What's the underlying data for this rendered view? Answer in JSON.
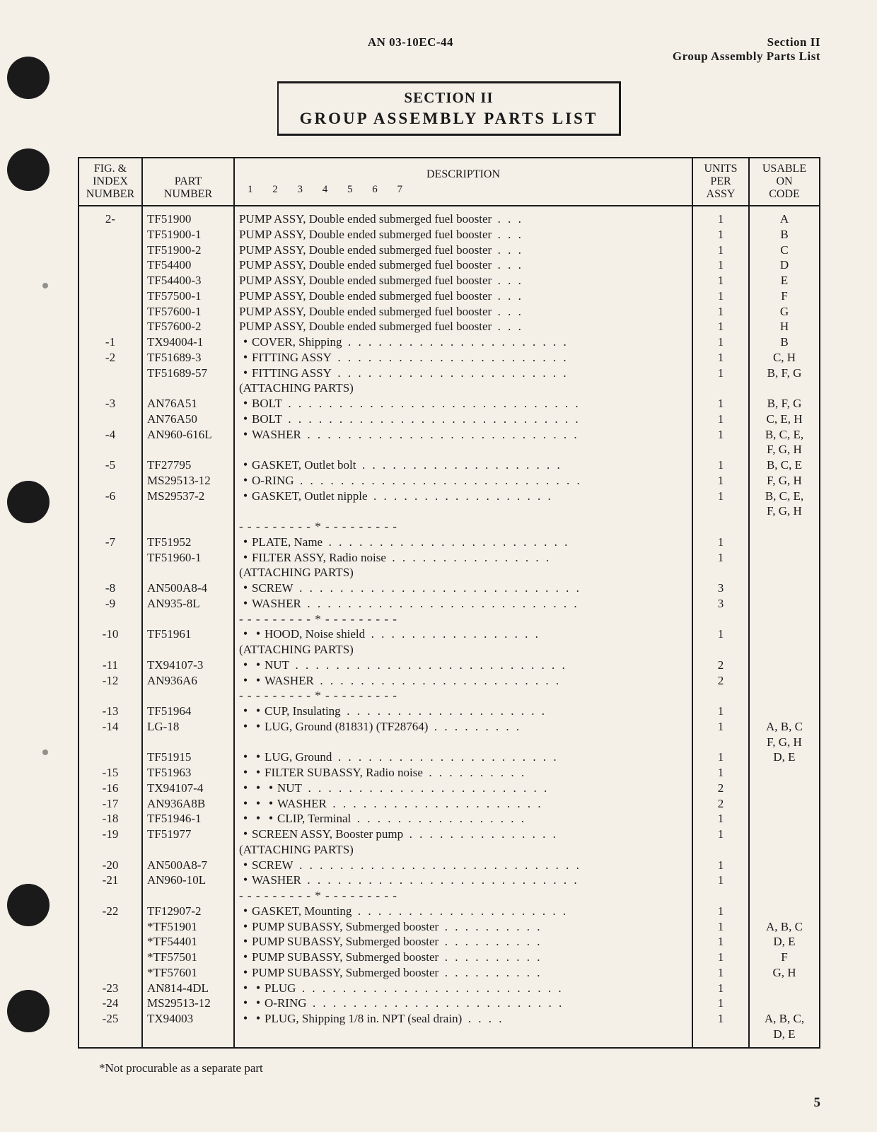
{
  "doc_number": "AN 03-10EC-44",
  "header_right_line1": "Section II",
  "header_right_line2": "Group Assembly Parts List",
  "title_line1": "SECTION II",
  "title_line2": "GROUP ASSEMBLY PARTS LIST",
  "columns": {
    "fig": "FIG. &\nINDEX\nNUMBER",
    "part": "PART\nNUMBER",
    "desc": "DESCRIPTION",
    "desc_nums": "1   2   3   4   5   6   7",
    "units": "UNITS\nPER\nASSY",
    "code": "USABLE\nON\nCODE"
  },
  "rows": [
    {
      "fig": "2-",
      "part": "TF51900",
      "indent": 0,
      "desc": "PUMP ASSY, Double ended submerged fuel booster",
      "leader": ". . .",
      "units": "1",
      "code": "A"
    },
    {
      "fig": "",
      "part": "TF51900-1",
      "indent": 0,
      "desc": "PUMP ASSY, Double ended submerged fuel booster",
      "leader": ". . .",
      "units": "1",
      "code": "B"
    },
    {
      "fig": "",
      "part": "TF51900-2",
      "indent": 0,
      "desc": "PUMP ASSY, Double ended submerged fuel booster",
      "leader": ". . .",
      "units": "1",
      "code": "C"
    },
    {
      "fig": "",
      "part": "TF54400",
      "indent": 0,
      "desc": "PUMP ASSY, Double ended submerged fuel booster",
      "leader": ". . .",
      "units": "1",
      "code": "D"
    },
    {
      "fig": "",
      "part": "TF54400-3",
      "indent": 0,
      "desc": "PUMP ASSY, Double ended submerged fuel booster",
      "leader": ". . .",
      "units": "1",
      "code": "E"
    },
    {
      "fig": "",
      "part": "TF57500-1",
      "indent": 0,
      "desc": "PUMP ASSY, Double ended submerged fuel booster",
      "leader": ". . .",
      "units": "1",
      "code": "F"
    },
    {
      "fig": "",
      "part": "TF57600-1",
      "indent": 0,
      "desc": "PUMP ASSY, Double ended submerged fuel booster",
      "leader": ". . .",
      "units": "1",
      "code": "G"
    },
    {
      "fig": "",
      "part": "TF57600-2",
      "indent": 0,
      "desc": "PUMP ASSY, Double ended submerged fuel booster",
      "leader": ". . .",
      "units": "1",
      "code": "H"
    },
    {
      "fig": "-1",
      "part": "TX94004-1",
      "indent": 1,
      "desc": "COVER, Shipping",
      "leader": ". . . . . . . . . . . . . . . . . . . . . .",
      "units": "1",
      "code": "B"
    },
    {
      "fig": "-2",
      "part": "TF51689-3",
      "indent": 1,
      "desc": "FITTING ASSY",
      "leader": ". . . . . . . . . . . . . . . . . . . . . . .",
      "units": "1",
      "code": "C, H"
    },
    {
      "fig": "",
      "part": "TF51689-57",
      "indent": 1,
      "desc": "FITTING ASSY",
      "leader": ". . . . . . . . . . . . . . . . . . . . . . .",
      "units": "1",
      "code": "B, F, G"
    },
    {
      "attach": "(ATTACHING PARTS)"
    },
    {
      "fig": "-3",
      "part": "AN76A51",
      "indent": 1,
      "desc": "BOLT",
      "leader": ". . . . . . . . . . . . . . . . . . . . . . . . . . . . .",
      "units": "1",
      "code": "B, F, G"
    },
    {
      "fig": "",
      "part": "AN76A50",
      "indent": 1,
      "desc": "BOLT",
      "leader": ". . . . . . . . . . . . . . . . . . . . . . . . . . . . .",
      "units": "1",
      "code": "C, E, H"
    },
    {
      "fig": "-4",
      "part": "AN960-616L",
      "indent": 1,
      "desc": "WASHER",
      "leader": ". . . . . . . . . . . . . . . . . . . . . . . . . . .",
      "units": "1",
      "code": "B, C, E,"
    },
    {
      "fig": "",
      "part": "",
      "indent": 0,
      "desc": "",
      "units": "",
      "code": "F, G, H"
    },
    {
      "fig": "-5",
      "part": "TF27795",
      "indent": 1,
      "desc": "GASKET, Outlet bolt",
      "leader": ". . . . . . . . . . . . . . . . . . . .",
      "units": "1",
      "code": "B, C, E"
    },
    {
      "fig": "",
      "part": "MS29513-12",
      "indent": 1,
      "desc": "O-RING",
      "leader": ". . . . . . . . . . . . . . . . . . . . . . . . . . . .",
      "units": "1",
      "code": "F, G, H"
    },
    {
      "fig": "-6",
      "part": "MS29537-2",
      "indent": 1,
      "desc": "GASKET, Outlet nipple",
      "leader": ". . . . . . . . . . . . . . . . . .",
      "units": "1",
      "code": "B, C, E,"
    },
    {
      "fig": "",
      "part": "",
      "indent": 0,
      "desc": "",
      "units": "",
      "code": "F, G, H"
    },
    {
      "sep": "- - - - - - - - - * - - - - - - - - -"
    },
    {
      "fig": "-7",
      "part": "TF51952",
      "indent": 1,
      "desc": "PLATE, Name",
      "leader": ". . . . . . . . . . . . . . . . . . . . . . . .",
      "units": "1",
      "code": ""
    },
    {
      "fig": "",
      "part": "TF51960-1",
      "indent": 1,
      "desc": "FILTER ASSY, Radio noise",
      "leader": ". . . . . . . . . . . . . . . .",
      "units": "1",
      "code": ""
    },
    {
      "attach": "(ATTACHING PARTS)"
    },
    {
      "fig": "-8",
      "part": "AN500A8-4",
      "indent": 1,
      "desc": "SCREW",
      "leader": ". . . . . . . . . . . . . . . . . . . . . . . . . . . .",
      "units": "3",
      "code": ""
    },
    {
      "fig": "-9",
      "part": "AN935-8L",
      "indent": 1,
      "desc": "WASHER",
      "leader": ". . . . . . . . . . . . . . . . . . . . . . . . . . .",
      "units": "3",
      "code": ""
    },
    {
      "sep": "- - - - - - - - - * - - - - - - - - -"
    },
    {
      "fig": "-10",
      "part": "TF51961",
      "indent": 2,
      "desc": "HOOD, Noise shield",
      "leader": ". . . . . . . . . . . . . . . . .",
      "units": "1",
      "code": ""
    },
    {
      "attach": "(ATTACHING PARTS)"
    },
    {
      "fig": "-11",
      "part": "TX94107-3",
      "indent": 2,
      "desc": "NUT",
      "leader": ". . . . . . . . . . . . . . . . . . . . . . . . . . .",
      "units": "2",
      "code": ""
    },
    {
      "fig": "-12",
      "part": "AN936A6",
      "indent": 2,
      "desc": "WASHER",
      "leader": ". . . . . . . . . . . . . . . . . . . . . . . .",
      "units": "2",
      "code": ""
    },
    {
      "sep": "- - - - - - - - - * - - - - - - - - -"
    },
    {
      "fig": "-13",
      "part": "TF51964",
      "indent": 2,
      "desc": "CUP, Insulating",
      "leader": ". . . . . . . . . . . . . . . . . . . .",
      "units": "1",
      "code": ""
    },
    {
      "fig": "-14",
      "part": "LG-18",
      "indent": 2,
      "desc": "LUG, Ground (81831) (TF28764)",
      "leader": ". . . . . . . . .",
      "units": "1",
      "code": "A, B, C"
    },
    {
      "fig": "",
      "part": "",
      "indent": 0,
      "desc": "",
      "units": "",
      "code": "F, G, H"
    },
    {
      "fig": "",
      "part": "TF51915",
      "indent": 2,
      "desc": "LUG, Ground",
      "leader": ". . . . . . . . . . . . . . . . . . . . . .",
      "units": "1",
      "code": "D, E"
    },
    {
      "fig": "-15",
      "part": "TF51963",
      "indent": 2,
      "desc": "FILTER SUBASSY, Radio noise",
      "leader": ". . . . . . . . . .",
      "units": "1",
      "code": ""
    },
    {
      "fig": "-16",
      "part": "TX94107-4",
      "indent": 3,
      "desc": "NUT",
      "leader": ". . . . . . . . . . . . . . . . . . . . . . . .",
      "units": "2",
      "code": ""
    },
    {
      "fig": "-17",
      "part": "AN936A8B",
      "indent": 3,
      "desc": "WASHER",
      "leader": ". . . . . . . . . . . . . . . . . . . . .",
      "units": "2",
      "code": ""
    },
    {
      "fig": "-18",
      "part": "TF51946-1",
      "indent": 3,
      "desc": "CLIP, Terminal",
      "leader": ". . . . . . . . . . . . . . . . .",
      "units": "1",
      "code": ""
    },
    {
      "fig": "-19",
      "part": "TF51977",
      "indent": 1,
      "desc": "SCREEN ASSY, Booster pump",
      "leader": ". . . . . . . . . . . . . . .",
      "units": "1",
      "code": ""
    },
    {
      "attach": "(ATTACHING PARTS)"
    },
    {
      "fig": "-20",
      "part": "AN500A8-7",
      "indent": 1,
      "desc": "SCREW",
      "leader": ". . . . . . . . . . . . . . . . . . . . . . . . . . . .",
      "units": "1",
      "code": ""
    },
    {
      "fig": "-21",
      "part": "AN960-10L",
      "indent": 1,
      "desc": "WASHER",
      "leader": ". . . . . . . . . . . . . . . . . . . . . . . . . . .",
      "units": "1",
      "code": ""
    },
    {
      "sep": "- - - - - - - - - * - - - - - - - - -"
    },
    {
      "fig": "-22",
      "part": "TF12907-2",
      "indent": 1,
      "desc": "GASKET, Mounting",
      "leader": ". . . . . . . . . . . . . . . . . . . . .",
      "units": "1",
      "code": ""
    },
    {
      "fig": "",
      "part": "*TF51901",
      "indent": 1,
      "desc": "PUMP SUBASSY, Submerged booster",
      "leader": ". . . . . . . . . .",
      "units": "1",
      "code": "A, B, C"
    },
    {
      "fig": "",
      "part": "*TF54401",
      "indent": 1,
      "desc": "PUMP SUBASSY, Submerged booster",
      "leader": ". . . . . . . . . .",
      "units": "1",
      "code": "D, E"
    },
    {
      "fig": "",
      "part": "*TF57501",
      "indent": 1,
      "desc": "PUMP SUBASSY, Submerged booster",
      "leader": ". . . . . . . . . .",
      "units": "1",
      "code": "F"
    },
    {
      "fig": "",
      "part": "*TF57601",
      "indent": 1,
      "desc": "PUMP SUBASSY, Submerged booster",
      "leader": ". . . . . . . . . .",
      "units": "1",
      "code": "G, H"
    },
    {
      "fig": "-23",
      "part": "AN814-4DL",
      "indent": 2,
      "desc": "PLUG",
      "leader": ". . . . . . . . . . . . . . . . . . . . . . . . . .",
      "units": "1",
      "code": ""
    },
    {
      "fig": "-24",
      "part": "MS29513-12",
      "indent": 2,
      "desc": "O-RING",
      "leader": ". . . . . . . . . . . . . . . . . . . . . . . . .",
      "units": "1",
      "code": ""
    },
    {
      "fig": "-25",
      "part": "TX94003",
      "indent": 2,
      "desc": "PLUG, Shipping 1/8 in. NPT (seal drain)",
      "leader": ". . . .",
      "units": "1",
      "code": "A, B, C,"
    },
    {
      "fig": "",
      "part": "",
      "indent": 0,
      "desc": "",
      "units": "",
      "code": "D, E"
    }
  ],
  "footnote": "*Not procurable as a separate part",
  "page_number": "5"
}
